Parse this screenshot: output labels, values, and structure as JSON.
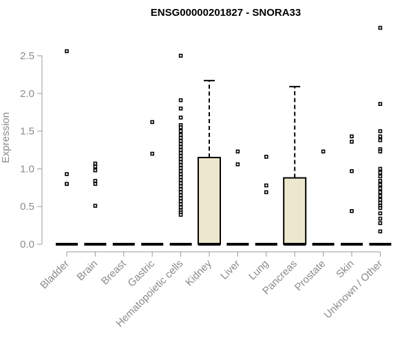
{
  "chart_data": {
    "type": "boxplot",
    "title": "ENSG00000201827 - SNORA33",
    "xlabel": "",
    "ylabel": "Expression",
    "ylim": [
      0,
      2.95
    ],
    "yticks": [
      0.0,
      0.5,
      1.0,
      1.5,
      2.0,
      2.5
    ],
    "ytick_labels": [
      "0.0",
      "0.5",
      "1.0",
      "1.5",
      "2.0",
      "2.5"
    ],
    "box_color": "#ede8cd",
    "categories": [
      "Bladder",
      "Brain",
      "Breast",
      "Gastric",
      "Hematopoietic cells",
      "Kidney",
      "Liver",
      "Lung",
      "Pancreas",
      "Prostate",
      "Skin",
      "Unknown / Other"
    ],
    "boxes": [
      {
        "q1": 0,
        "median": 0,
        "q3": 0,
        "whisker_low": 0,
        "whisker_high": 0,
        "outliers": [
          2.56,
          0.93,
          0.8,
          0.8
        ]
      },
      {
        "q1": 0,
        "median": 0,
        "q3": 0,
        "whisker_low": 0,
        "whisker_high": 0,
        "outliers": [
          1.07,
          1.03,
          0.98,
          0.84,
          0.8,
          0.51
        ]
      },
      {
        "q1": 0,
        "median": 0,
        "q3": 0,
        "whisker_low": 0,
        "whisker_high": 0,
        "outliers": []
      },
      {
        "q1": 0,
        "median": 0,
        "q3": 0,
        "whisker_low": 0,
        "whisker_high": 0,
        "outliers": [
          1.62,
          1.2
        ]
      },
      {
        "q1": 0,
        "median": 0,
        "q3": 0,
        "whisker_low": 0,
        "whisker_high": 0,
        "outliers": [
          2.5,
          1.91,
          1.8,
          1.68,
          1.58,
          1.55,
          1.5,
          1.45,
          1.41,
          1.37,
          1.33,
          1.29,
          1.25,
          1.21,
          1.17,
          1.13,
          1.09,
          1.05,
          1.01,
          0.97,
          0.93,
          0.89,
          0.85,
          0.81,
          0.77,
          0.73,
          0.69,
          0.65,
          0.61,
          0.57,
          0.53,
          0.49,
          0.45,
          0.42,
          0.39
        ]
      },
      {
        "q1": 0,
        "median": 0,
        "q3": 1.15,
        "whisker_low": 0,
        "whisker_high": 2.17,
        "outliers": []
      },
      {
        "q1": 0,
        "median": 0,
        "q3": 0,
        "whisker_low": 0,
        "whisker_high": 0,
        "outliers": [
          1.23,
          1.06
        ]
      },
      {
        "q1": 0,
        "median": 0,
        "q3": 0,
        "whisker_low": 0,
        "whisker_high": 0,
        "outliers": [
          1.16,
          0.78,
          0.69
        ]
      },
      {
        "q1": 0,
        "median": 0,
        "q3": 0.88,
        "whisker_low": 0,
        "whisker_high": 2.09,
        "outliers": []
      },
      {
        "q1": 0,
        "median": 0,
        "q3": 0,
        "whisker_low": 0,
        "whisker_high": 0,
        "outliers": [
          1.23
        ]
      },
      {
        "q1": 0,
        "median": 0,
        "q3": 0,
        "whisker_low": 0,
        "whisker_high": 0,
        "outliers": [
          1.43,
          1.36,
          0.97,
          0.44
        ]
      },
      {
        "q1": 0,
        "median": 0,
        "q3": 0,
        "whisker_low": 0,
        "whisker_high": 0,
        "outliers": [
          2.87,
          1.86,
          1.5,
          1.43,
          1.38,
          1.26,
          1.23,
          1.0,
          0.95,
          0.9,
          0.84,
          0.79,
          0.74,
          0.69,
          0.64,
          0.59,
          0.55,
          0.51,
          0.48,
          0.41,
          0.34,
          0.28,
          0.17
        ]
      }
    ]
  }
}
